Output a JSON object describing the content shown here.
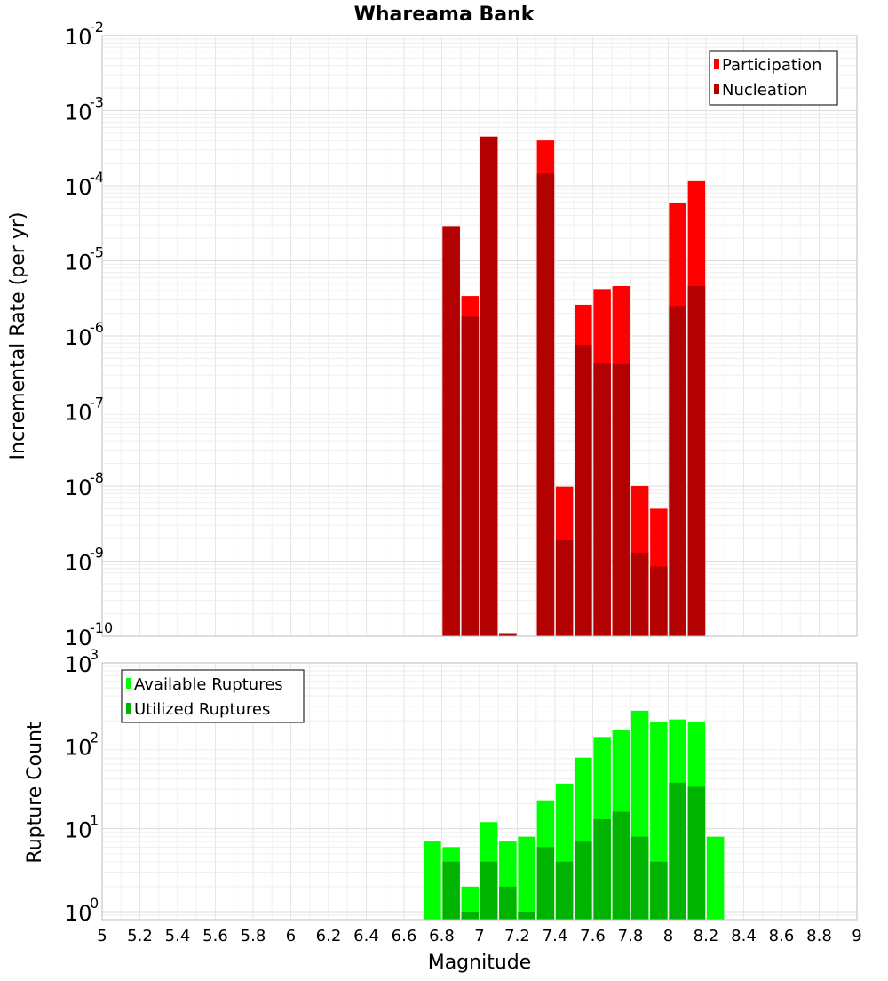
{
  "title": "Whareama Bank",
  "xlabel": "Magnitude",
  "x_ticks": [
    "5",
    "5.2",
    "5.4",
    "5.6",
    "5.8",
    "6",
    "6.2",
    "6.4",
    "6.6",
    "6.8",
    "7",
    "7.2",
    "7.4",
    "7.6",
    "7.8",
    "8",
    "8.2",
    "8.4",
    "8.6",
    "8.8",
    "9"
  ],
  "top": {
    "ylabel": "Incremental Rate (per yr)",
    "y_tick_base": "10",
    "y_tick_exponents": [
      "-10",
      "-9",
      "-8",
      "-7",
      "-6",
      "-5",
      "-4",
      "-3",
      "-2"
    ],
    "legend": [
      {
        "label": "Participation",
        "color": "#ff0000"
      },
      {
        "label": "Nucleation",
        "color": "#b30000"
      }
    ]
  },
  "bottom": {
    "ylabel": "Rupture Count",
    "y_tick_base": "10",
    "y_tick_exponents": [
      "0",
      "1",
      "2",
      "3"
    ],
    "legend": [
      {
        "label": "Available Ruptures",
        "color": "#00ff00"
      },
      {
        "label": "Utilized Ruptures",
        "color": "#00b300"
      }
    ]
  },
  "chart_data": [
    {
      "type": "bar",
      "title": "Whareama Bank",
      "xlabel": "Magnitude",
      "ylabel": "Incremental Rate (per yr)",
      "yscale": "log",
      "xlim": [
        5,
        9
      ],
      "ylim": [
        1e-10,
        0.01
      ],
      "grid": true,
      "legend_position": "top-right",
      "x": [
        6.85,
        6.95,
        7.05,
        7.15,
        7.35,
        7.45,
        7.55,
        7.65,
        7.75,
        7.85,
        7.95,
        8.05,
        8.15
      ],
      "series": [
        {
          "name": "Participation",
          "color": "#ff0000",
          "values": [
            2.9e-05,
            3.4e-06,
            0.00045,
            1.1e-10,
            0.0004,
            9.8e-09,
            2.6e-06,
            4.2e-06,
            4.6e-06,
            1e-08,
            5e-09,
            5.9e-05,
            0.000115
          ]
        },
        {
          "name": "Nucleation",
          "color": "#b30000",
          "values": [
            2.9e-05,
            1.8e-06,
            0.00045,
            1.1e-10,
            0.000145,
            1.9e-09,
            7.6e-07,
            4.4e-07,
            4.2e-07,
            1.3e-09,
            8.5e-10,
            2.5e-06,
            4.6e-06
          ]
        }
      ]
    },
    {
      "type": "bar",
      "xlabel": "Magnitude",
      "ylabel": "Rupture Count",
      "yscale": "log",
      "xlim": [
        5,
        9
      ],
      "ylim": [
        0.8,
        1000
      ],
      "grid": true,
      "legend_position": "top-left",
      "x": [
        6.75,
        6.85,
        6.95,
        7.05,
        7.15,
        7.25,
        7.35,
        7.45,
        7.55,
        7.65,
        7.75,
        7.85,
        7.95,
        8.05,
        8.15,
        8.25
      ],
      "series": [
        {
          "name": "Available Ruptures",
          "color": "#00ff00",
          "values": [
            7,
            6,
            2,
            12,
            7,
            8,
            22,
            35,
            72,
            128,
            155,
            265,
            192,
            208,
            192,
            8
          ]
        },
        {
          "name": "Utilized Ruptures",
          "color": "#00b300",
          "values": [
            0,
            4,
            1,
            4,
            2,
            1,
            6,
            4,
            7,
            13,
            16,
            8,
            4,
            36,
            32,
            0
          ]
        }
      ]
    }
  ]
}
